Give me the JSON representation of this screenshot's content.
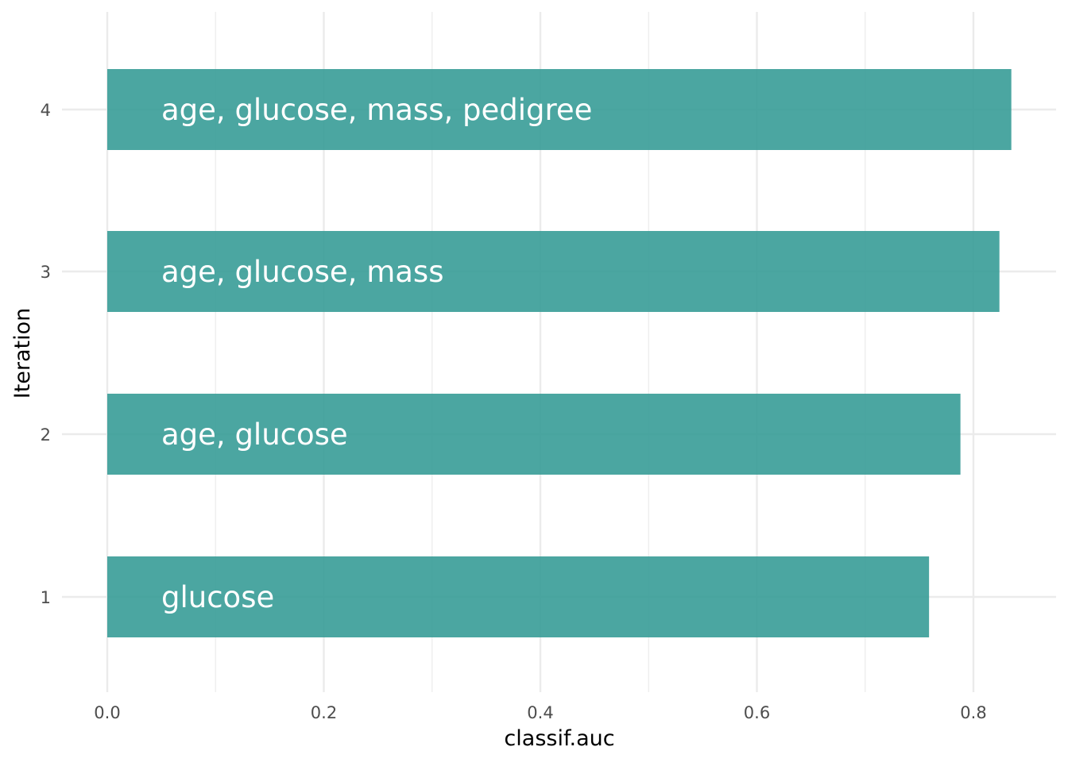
{
  "chart_data": {
    "type": "bar",
    "orientation": "horizontal",
    "categories": [
      "1",
      "2",
      "3",
      "4"
    ],
    "values": [
      0.759,
      0.788,
      0.824,
      0.835
    ],
    "bar_labels": [
      "glucose",
      "age, glucose",
      "age, glucose, mass",
      "age, glucose, mass, pedigree"
    ],
    "xlabel": "classif.auc",
    "ylabel": "Iteration",
    "xlim": [
      0,
      0.875
    ],
    "x_ticks": [
      0.0,
      0.2,
      0.4,
      0.6,
      0.8
    ],
    "x_tick_labels": [
      "0.0",
      "0.2",
      "0.4",
      "0.6",
      "0.8"
    ],
    "grid": true,
    "legend": "none",
    "bar_color": "#379C97",
    "bar_opacity": 0.9
  }
}
